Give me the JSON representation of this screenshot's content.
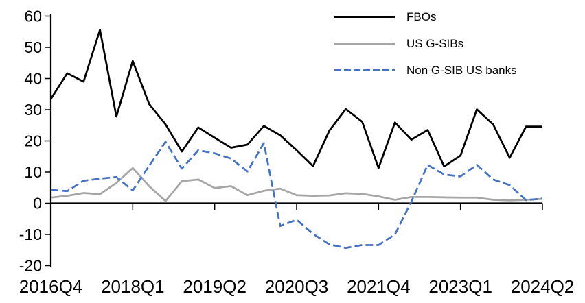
{
  "chart_data": {
    "type": "line",
    "title": "",
    "categories": [
      "2016Q4",
      "2017Q1",
      "2017Q2",
      "2017Q3",
      "2017Q4",
      "2018Q1",
      "2018Q2",
      "2018Q3",
      "2018Q4",
      "2019Q1",
      "2019Q2",
      "2019Q3",
      "2019Q4",
      "2020Q1",
      "2020Q2",
      "2020Q3",
      "2020Q4",
      "2021Q1",
      "2021Q2",
      "2021Q3",
      "2021Q4",
      "2022Q1",
      "2022Q2",
      "2022Q3",
      "2022Q4",
      "2023Q1",
      "2023Q2",
      "2023Q3",
      "2023Q4",
      "2024Q1",
      "2024Q2"
    ],
    "x_tick_labels": [
      "2016Q4",
      "2018Q1",
      "2019Q2",
      "2020Q3",
      "2021Q4",
      "2023Q1",
      "2024Q2"
    ],
    "x_tick_step": 5,
    "y_ticks": [
      60,
      50,
      40,
      30,
      20,
      10,
      0,
      -10,
      -20
    ],
    "ylim": [
      -20,
      60
    ],
    "grid": false,
    "legend_position": "top-right-inside",
    "axis_color": "#000000",
    "series": [
      {
        "name": "FBOs",
        "color": "#000000",
        "style": "solid",
        "values": [
          33.4,
          41.7,
          39.0,
          55.6,
          27.8,
          45.6,
          31.8,
          25.3,
          16.6,
          24.3,
          21.0,
          17.8,
          18.8,
          24.8,
          21.8,
          17.0,
          11.9,
          23.3,
          30.2,
          26.1,
          11.3,
          25.9,
          20.4,
          23.5,
          11.8,
          15.3,
          30.1,
          25.2,
          14.6,
          24.6,
          24.6
        ]
      },
      {
        "name": "US G-SIBs",
        "color": "#A6A6A6",
        "style": "solid",
        "values": [
          1.8,
          2.4,
          3.3,
          2.9,
          6.5,
          11.3,
          5.5,
          0.7,
          7.1,
          7.6,
          4.9,
          5.5,
          2.6,
          4.0,
          4.7,
          2.6,
          2.4,
          2.5,
          3.2,
          3.0,
          2.2,
          1.1,
          2.0,
          2.0,
          1.9,
          1.8,
          1.8,
          1.1,
          0.9,
          1.1,
          1.4
        ]
      },
      {
        "name": "Non G-SIB US banks",
        "color": "#4472C4",
        "style": "dashed",
        "values": [
          4.3,
          3.9,
          7.2,
          7.9,
          8.4,
          4.1,
          12.0,
          19.7,
          11.1,
          17.0,
          16.0,
          14.3,
          10.2,
          19.3,
          -7.3,
          -5.3,
          -9.8,
          -13.2,
          -14.3,
          -13.4,
          -13.4,
          -10.0,
          0.5,
          12.3,
          9.2,
          8.6,
          12.3,
          7.6,
          5.8,
          1.0,
          1.5
        ]
      }
    ]
  }
}
